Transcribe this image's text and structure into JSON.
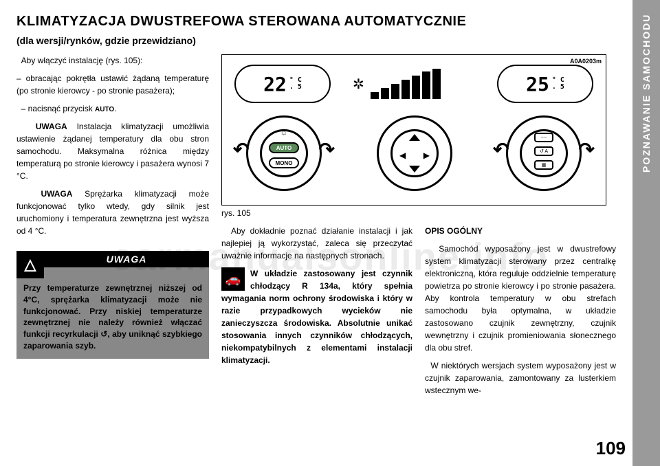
{
  "side_tab": "POZNAWANIE SAMOCHODU",
  "title": "KLIMATYZACJA DWUSTREFOWA STEROWANA AUTOMATYCZNIE",
  "subtitle": "(dla wersji/rynków, gdzie przewidziano)",
  "left": {
    "p1": "Aby włączyć instalację (rys. 105):",
    "p2": "– obracając pokrętła ustawić żądaną temperaturę (po stronie kierowcy - po stronie pasażera);",
    "p3_pre": "– nacisnąć przycisk ",
    "p3_btn": "AUTO",
    "p3_post": ".",
    "p4_pre": "UWAGA",
    "p4": " Instalacja klimatyzacji umożliwia ustawienie żądanej temperatury dla obu stron samochodu. Maksymalna różnica między temperaturą po stronie kierowcy i pasażera wynosi 7 °C.",
    "p5_pre": "UWAGA",
    "p5": " Sprężarka klimatyzacji może funkcjonować tylko wtedy, gdy silnik jest uruchomiony i temperatura zewnętrzna jest wyższa od 4 °C."
  },
  "warning": {
    "label": "UWAGA",
    "body": "Przy temperaturze zewnętrznej niższej od 4°C, sprężarka klimatyzacji może nie funkcjonować. Przy niskiej temperaturze zewnętrznej nie należy również włączać funkcji recyrkulacji ↺, aby uniknąć szybkiego zaparowania szyb."
  },
  "diagram": {
    "code": "A0A0203m",
    "temp_left": "22",
    "temp_right": "25",
    "temp_unit_top": "° C",
    "temp_unit_bot": ". 5",
    "auto": "AUTO",
    "mono": "MONO",
    "fan_bars": [
      10,
      16,
      22,
      28,
      34,
      40,
      44
    ],
    "caption": "rys. 105"
  },
  "col_mid": {
    "p1": "Aby dokładnie poznać działanie instalacji i jak najlepiej ją wykorzystać, zaleca się przeczytać uważnie informacje na następnych stronach.",
    "info": "W układzie zastosowany jest czynnik chłodzący R 134a, który spełnia wymagania norm ochrony środowiska i który w razie przypadkowych wycieków nie zanieczyszcza środowiska. Absolutnie unikać stosowania innych czynników chłodzących, niekompatybilnych z elementami instalacji klimatyzacji."
  },
  "col_right": {
    "h": "OPIS OGÓLNY",
    "p1": "Samochód wyposażony jest w dwustrefowy system klimatyzacji sterowany przez centralkę elektroniczną, która reguluje oddzielnie temperaturę powietrza po stronie kierowcy i po stronie pasażera. Aby kontrola temperatury w obu strefach samochodu była optymalna, w układzie zastosowano czujnik zewnętrzny, czujnik wewnętrzny i czujnik promieniowania słonecznego dla obu stref.",
    "p2": "W niektórych wersjach system wyposażony jest w czujnik zaparowania, zamontowany za lusterkiem wstecznym we-"
  },
  "page_number": "109",
  "watermark": "carmanualsonline.info",
  "colors": {
    "page_bg": "#ffffff",
    "body_bg": "#f5f5f5",
    "tab_bg": "#9a9a9a",
    "warning_bg": "#888888",
    "text": "#000000"
  }
}
